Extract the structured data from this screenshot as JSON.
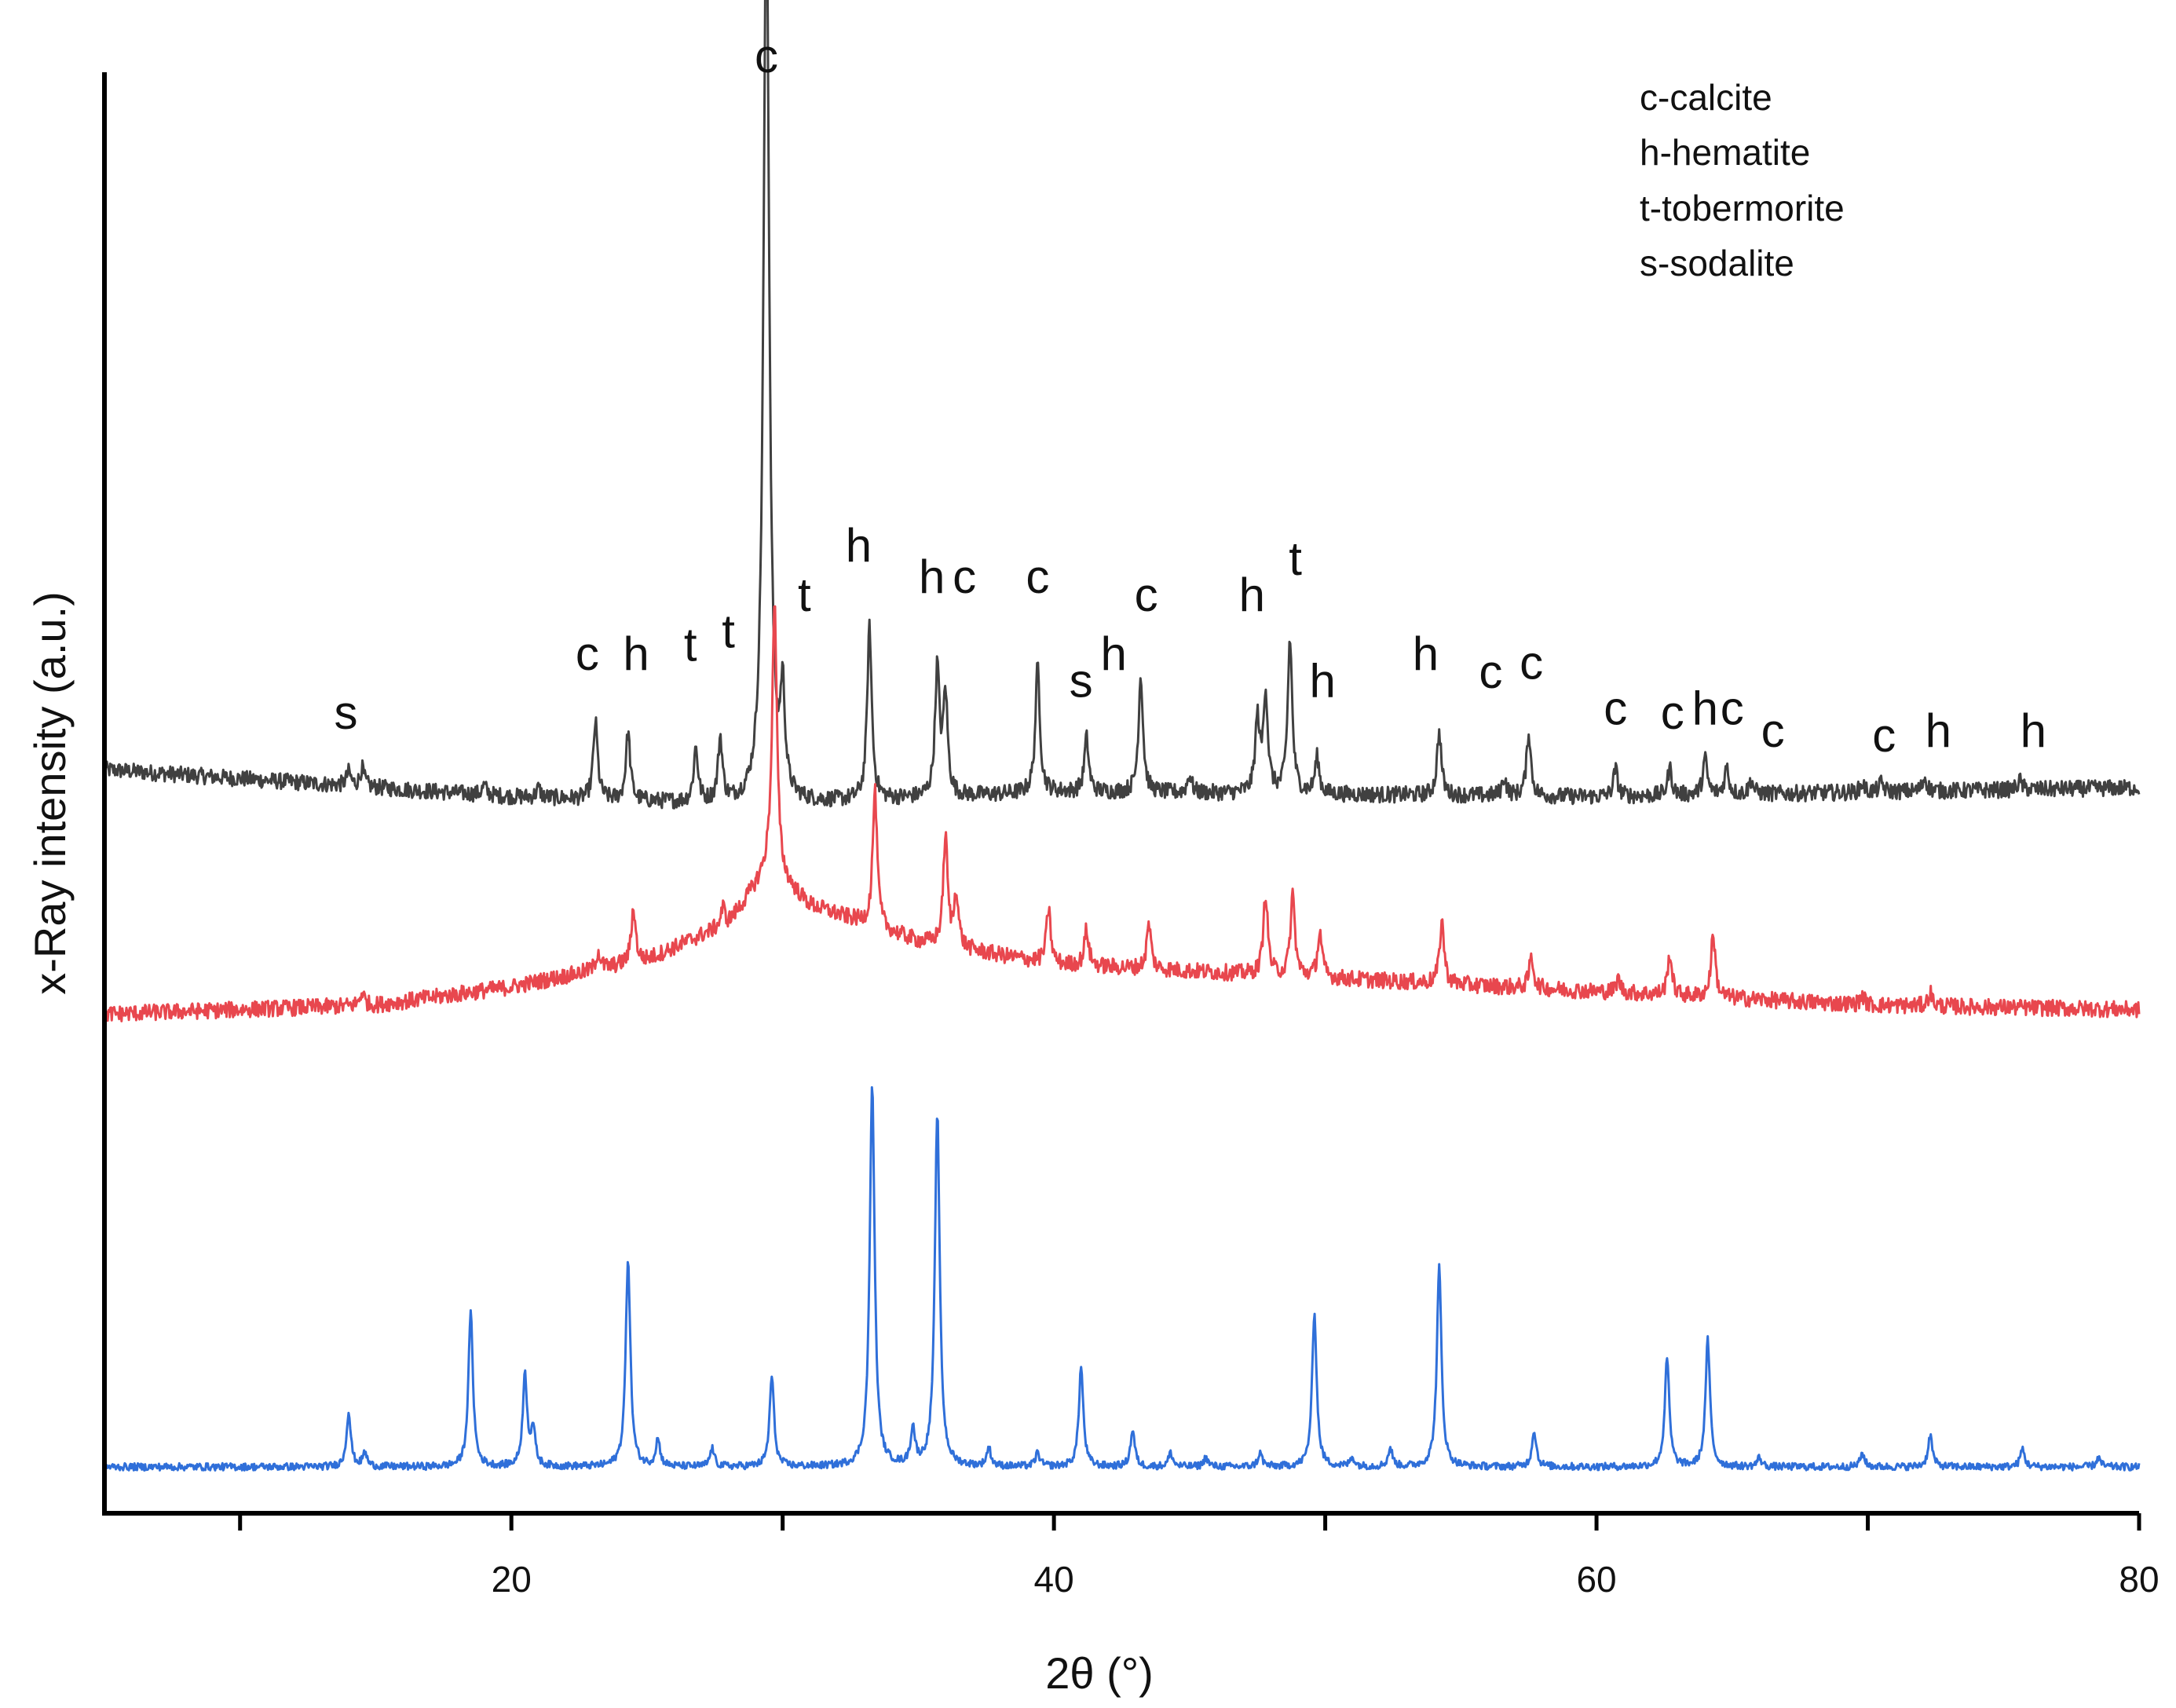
{
  "chart_data": {
    "type": "line",
    "title": "",
    "xlabel": "2θ (°)",
    "ylabel": "x-Ray intensity (a.u.)",
    "xlim": [
      5,
      80
    ],
    "x_ticks": [
      20,
      40,
      60,
      80
    ],
    "x_minor_ticks": [
      10,
      30,
      50,
      70
    ],
    "y_ticks_shown": false,
    "grid": false,
    "legend_position": "top-right",
    "legend_entries": [
      "c-calcite",
      "h-hematite",
      "t-tobermorite",
      "s-sodalite"
    ],
    "series": [
      {
        "color": "#404040",
        "baseline": [
          [
            5,
            0.77
          ],
          [
            20,
            0.74
          ],
          [
            29,
            0.73
          ],
          [
            40,
            0.745
          ],
          [
            60,
            0.74
          ],
          [
            80,
            0.75
          ]
        ],
        "peaks": [
          [
            14.0,
            0.015
          ],
          [
            14.5,
            0.02
          ],
          [
            19.0,
            0.01
          ],
          [
            21.0,
            0.01
          ],
          [
            23.1,
            0.085
          ],
          [
            24.3,
            0.075
          ],
          [
            26.8,
            0.06
          ],
          [
            27.7,
            0.07
          ],
          [
            29.4,
            1.0
          ],
          [
            30.0,
            0.11
          ],
          [
            33.2,
            0.19
          ],
          [
            35.7,
            0.14
          ],
          [
            36.0,
            0.11
          ],
          [
            39.4,
            0.14
          ],
          [
            41.2,
            0.06
          ],
          [
            43.2,
            0.13
          ],
          [
            45.0,
            0.02
          ],
          [
            47.5,
            0.08
          ],
          [
            47.8,
            0.11
          ],
          [
            48.7,
            0.17
          ],
          [
            49.7,
            0.04
          ],
          [
            54.2,
            0.07
          ],
          [
            56.6,
            0.02
          ],
          [
            57.5,
            0.07
          ],
          [
            60.7,
            0.03
          ],
          [
            62.7,
            0.03
          ],
          [
            64.0,
            0.04
          ],
          [
            64.8,
            0.03
          ],
          [
            65.7,
            0.015
          ],
          [
            69.8,
            0.01
          ],
          [
            70.5,
            0.01
          ],
          [
            72.1,
            0.015
          ],
          [
            75.6,
            0.01
          ]
        ],
        "peak_labels": [
          {
            "x": 13.9,
            "y": 0.815,
            "text": "s"
          },
          {
            "x": 22.8,
            "y": 0.88,
            "text": "c"
          },
          {
            "x": 24.6,
            "y": 0.88,
            "text": "h"
          },
          {
            "x": 26.6,
            "y": 0.89,
            "text": "t"
          },
          {
            "x": 28.0,
            "y": 0.905,
            "text": "t"
          },
          {
            "x": 29.4,
            "y": 1.54,
            "text": "c"
          },
          {
            "x": 30.8,
            "y": 0.945,
            "text": "t"
          },
          {
            "x": 32.8,
            "y": 1.0,
            "text": "h"
          },
          {
            "x": 35.5,
            "y": 0.965,
            "text": "h"
          },
          {
            "x": 36.7,
            "y": 0.965,
            "text": "c"
          },
          {
            "x": 39.4,
            "y": 0.965,
            "text": "c"
          },
          {
            "x": 41.0,
            "y": 0.85,
            "text": "s"
          },
          {
            "x": 42.2,
            "y": 0.88,
            "text": "h"
          },
          {
            "x": 43.4,
            "y": 0.945,
            "text": "c"
          },
          {
            "x": 47.3,
            "y": 0.945,
            "text": "h"
          },
          {
            "x": 48.9,
            "y": 0.985,
            "text": "t"
          },
          {
            "x": 49.9,
            "y": 0.85,
            "text": "h"
          },
          {
            "x": 53.7,
            "y": 0.88,
            "text": "h"
          },
          {
            "x": 56.1,
            "y": 0.86,
            "text": "c"
          },
          {
            "x": 57.6,
            "y": 0.87,
            "text": "c"
          },
          {
            "x": 60.7,
            "y": 0.82,
            "text": "c"
          },
          {
            "x": 62.8,
            "y": 0.815,
            "text": "c"
          },
          {
            "x": 64.0,
            "y": 0.82,
            "text": "h"
          },
          {
            "x": 65.0,
            "y": 0.82,
            "text": "c"
          },
          {
            "x": 66.5,
            "y": 0.795,
            "text": "c"
          },
          {
            "x": 70.6,
            "y": 0.79,
            "text": "c"
          },
          {
            "x": 72.6,
            "y": 0.795,
            "text": "h"
          },
          {
            "x": 76.1,
            "y": 0.795,
            "text": "h"
          }
        ]
      },
      {
        "color": "#e8474e",
        "baseline": [
          [
            5,
            0.5
          ],
          [
            15,
            0.51
          ],
          [
            20,
            0.53
          ],
          [
            25,
            0.56
          ],
          [
            28,
            0.6
          ],
          [
            29.5,
            0.66
          ],
          [
            31,
            0.62
          ],
          [
            35,
            0.58
          ],
          [
            40,
            0.555
          ],
          [
            50,
            0.54
          ],
          [
            60,
            0.525
          ],
          [
            70,
            0.51
          ],
          [
            80,
            0.505
          ]
        ],
        "peaks": [
          [
            14.5,
            0.015
          ],
          [
            23.2,
            0.02
          ],
          [
            24.5,
            0.06
          ],
          [
            27.8,
            0.02
          ],
          [
            29.7,
            0.3
          ],
          [
            33.4,
            0.15
          ],
          [
            36.0,
            0.12
          ],
          [
            36.4,
            0.06
          ],
          [
            39.8,
            0.06
          ],
          [
            41.2,
            0.04
          ],
          [
            43.5,
            0.05
          ],
          [
            47.8,
            0.09
          ],
          [
            48.8,
            0.09
          ],
          [
            49.8,
            0.05
          ],
          [
            54.3,
            0.07
          ],
          [
            57.6,
            0.035
          ],
          [
            60.8,
            0.015
          ],
          [
            62.7,
            0.045
          ],
          [
            64.3,
            0.07
          ],
          [
            69.8,
            0.01
          ],
          [
            72.3,
            0.015
          ]
        ]
      },
      {
        "color": "#2f6fd9",
        "baseline": [
          [
            5,
            0.0
          ],
          [
            80,
            0.0
          ]
        ],
        "peaks": [
          [
            14.0,
            0.06
          ],
          [
            14.6,
            0.015
          ],
          [
            18.5,
            0.17
          ],
          [
            20.5,
            0.1
          ],
          [
            20.8,
            0.04
          ],
          [
            24.3,
            0.23
          ],
          [
            25.4,
            0.03
          ],
          [
            27.4,
            0.02
          ],
          [
            29.6,
            0.1
          ],
          [
            33.3,
            0.42
          ],
          [
            34.8,
            0.04
          ],
          [
            35.7,
            0.39
          ],
          [
            37.6,
            0.02
          ],
          [
            39.4,
            0.015
          ],
          [
            41.0,
            0.11
          ],
          [
            42.9,
            0.04
          ],
          [
            44.3,
            0.015
          ],
          [
            45.6,
            0.01
          ],
          [
            47.6,
            0.015
          ],
          [
            49.6,
            0.17
          ],
          [
            51.0,
            0.01
          ],
          [
            52.4,
            0.02
          ],
          [
            54.2,
            0.22
          ],
          [
            57.7,
            0.04
          ],
          [
            62.6,
            0.12
          ],
          [
            64.1,
            0.14
          ],
          [
            66.0,
            0.01
          ],
          [
            69.8,
            0.015
          ],
          [
            72.3,
            0.035
          ],
          [
            75.7,
            0.02
          ],
          [
            78.5,
            0.01
          ]
        ]
      }
    ]
  }
}
